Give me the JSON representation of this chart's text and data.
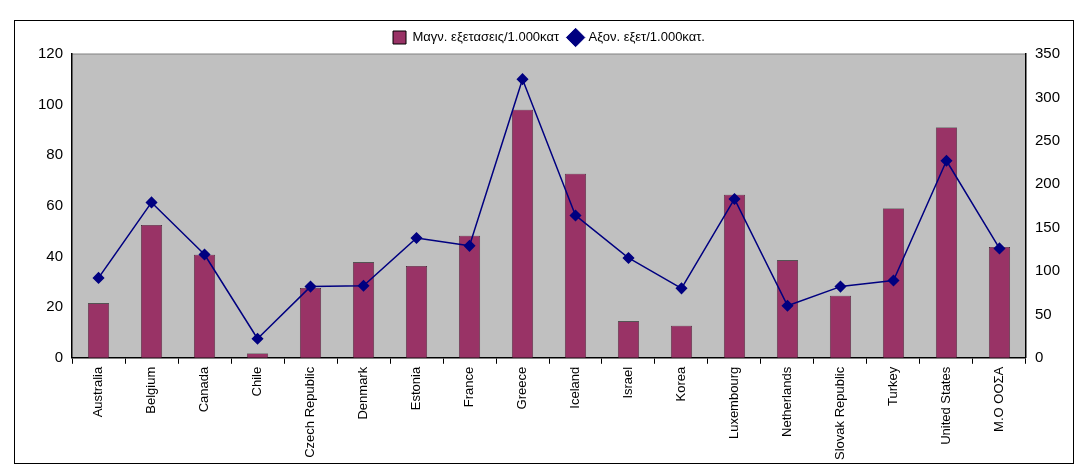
{
  "chart_data": {
    "type": "bar",
    "categories": [
      "Australia",
      "Belgium",
      "Canada",
      "Chile",
      "Czech Republic",
      "Denmark",
      "Estonia",
      "France",
      "Greece",
      "Iceland",
      "Israel",
      "Korea",
      "Luxembourg",
      "Netherlands",
      "Slovak Republic",
      "Turkey",
      "United States",
      "M.O ΟΟΣΑ"
    ],
    "series": [
      {
        "name": "Μαγν. εξετασεις/1.000κατ",
        "color": "#993366",
        "values": [
          21.5,
          52.5,
          40.7,
          1.7,
          27.6,
          37.7,
          36.3,
          48.2,
          98,
          72.7,
          14.4,
          12.7,
          64.4,
          38.5,
          24.5,
          59,
          91,
          43.8
        ]
      },
      {
        "name": "Αξον. εξετ/1.000κατ.",
        "type": "line",
        "axis": "y2",
        "color": "#000080",
        "marker": "diamond",
        "values": [
          92,
          179,
          119,
          22,
          82,
          83,
          138,
          129,
          321,
          164,
          115,
          80,
          183,
          60,
          82,
          89,
          227,
          126
        ]
      }
    ],
    "ylim": [
      0,
      120
    ],
    "yticks": [
      0,
      20,
      40,
      60,
      80,
      100,
      120
    ],
    "y2lim": [
      0,
      350
    ],
    "y2ticks": [
      0,
      50,
      100,
      150,
      200,
      250,
      300,
      350
    ],
    "grid": false,
    "legend": "top"
  }
}
